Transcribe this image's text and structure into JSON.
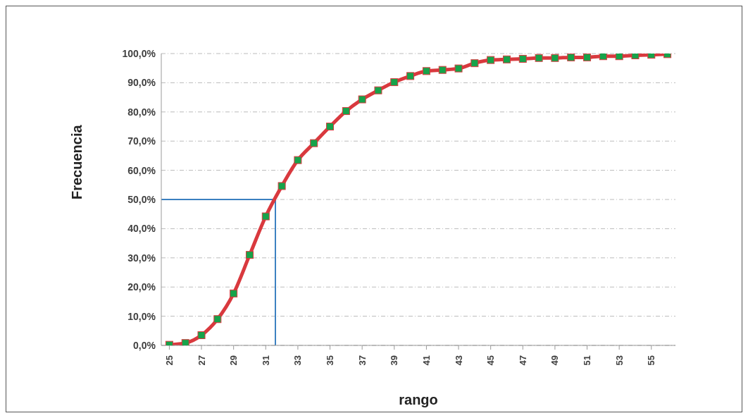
{
  "chart_data": {
    "type": "line",
    "xlabel": "rango",
    "ylabel": "Frecuencia",
    "x": [
      25,
      26,
      27,
      28,
      29,
      30,
      31,
      32,
      33,
      34,
      35,
      36,
      37,
      38,
      39,
      40,
      41,
      42,
      43,
      44,
      45,
      46,
      47,
      48,
      49,
      50,
      51,
      52,
      53,
      54,
      55,
      56
    ],
    "series": [
      {
        "color": "#d9393e",
        "values": [
          0.2,
          0.8,
          3.5,
          9,
          17.8,
          31,
          44.2,
          54.6,
          63.5,
          69.3,
          75,
          80.3,
          84.3,
          87.4,
          90.2,
          92.3,
          94,
          94.4,
          94.9,
          96.7,
          97.8,
          98,
          98.2,
          98.5,
          98.5,
          98.7,
          98.7,
          99.1,
          99.1,
          99.4,
          99.6,
          99.8
        ]
      }
    ],
    "xlim": [
      24.5,
      56.5
    ],
    "xticks": [
      25,
      27,
      29,
      31,
      33,
      35,
      37,
      39,
      41,
      43,
      45,
      47,
      49,
      51,
      53,
      55
    ],
    "ylim": [
      0,
      100
    ],
    "yticks": [
      {
        "value": 0,
        "label": "0,0%"
      },
      {
        "value": 10,
        "label": "10,0%"
      },
      {
        "value": 20,
        "label": "20,0%"
      },
      {
        "value": 30,
        "label": "30,0%"
      },
      {
        "value": 40,
        "label": "40,0%"
      },
      {
        "value": 50,
        "label": "50,0%"
      },
      {
        "value": 60,
        "label": "60,0%"
      },
      {
        "value": 70,
        "label": "70,0%"
      },
      {
        "value": 80,
        "label": "80,0%"
      },
      {
        "value": 90,
        "label": "90,0%"
      },
      {
        "value": 100,
        "label": "100,0%"
      }
    ],
    "ref_lines": [
      {
        "axis": "y",
        "value": 50,
        "color": "#3a7fc0"
      },
      {
        "axis": "x",
        "value": 31.6,
        "color": "#3a7fc0"
      }
    ],
    "grid": "y",
    "legend": false,
    "marker": "square",
    "line_style": "solid"
  }
}
